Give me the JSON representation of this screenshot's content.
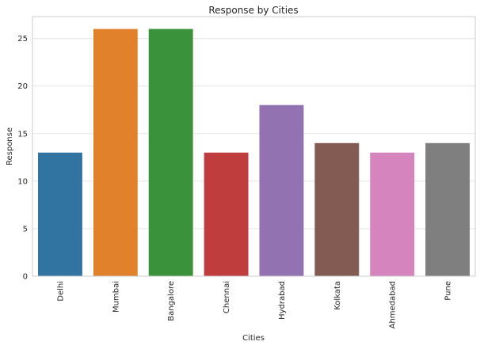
{
  "chart_data": {
    "type": "bar",
    "title": "Response by Cities",
    "xlabel": "Cities",
    "ylabel": "Response",
    "categories": [
      "Delhi",
      "Mumbai",
      "Bangalore",
      "Chennai",
      "Hydrabad",
      "Kolkata",
      "Ahmedabad",
      "Pune"
    ],
    "values": [
      13,
      26,
      26,
      13,
      18,
      14,
      13,
      14
    ],
    "colors": [
      "#3274a1",
      "#e1812c",
      "#3a923a",
      "#c03d3e",
      "#9372b2",
      "#845b53",
      "#d684bd",
      "#7f7f7f"
    ],
    "ylim": [
      0,
      27.3
    ],
    "yticks": [
      0,
      5,
      10,
      15,
      20,
      25
    ],
    "grid": "horizontal",
    "style": {
      "background": "#ffffff",
      "grid_color": "#e5e5e5",
      "spine_color": "#cccccc"
    }
  }
}
